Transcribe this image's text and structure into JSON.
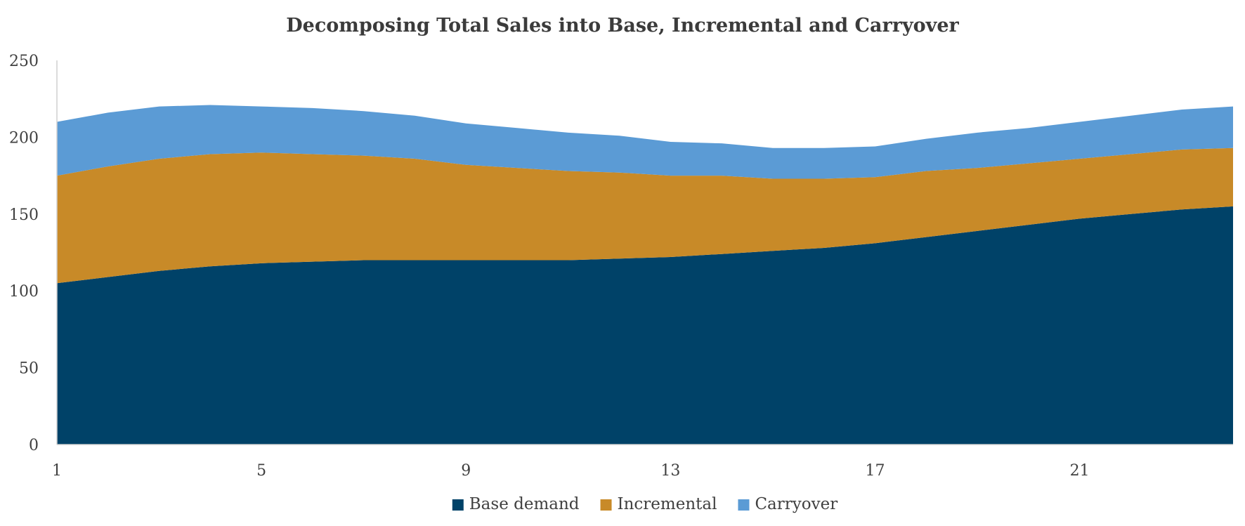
{
  "chart_data": {
    "type": "area",
    "stacked": true,
    "title": "Decomposing Total Sales into Base, Incremental and Carryover",
    "xlabel": "",
    "ylabel": "",
    "x": [
      1,
      2,
      3,
      4,
      5,
      6,
      7,
      8,
      9,
      10,
      11,
      12,
      13,
      14,
      15,
      16,
      17,
      18,
      19,
      20,
      21,
      22,
      23,
      24
    ],
    "x_tick_labels": [
      "1",
      "5",
      "9",
      "13",
      "17",
      "21"
    ],
    "x_ticks": [
      1,
      5,
      9,
      13,
      17,
      21
    ],
    "xlim": [
      1,
      24
    ],
    "ylim": [
      0,
      250
    ],
    "y_ticks": [
      0,
      50,
      100,
      150,
      200,
      250
    ],
    "y_tick_labels": [
      "0",
      "50",
      "100",
      "150",
      "200",
      "250"
    ],
    "grid": false,
    "legend_position": "bottom",
    "series": [
      {
        "name": "Base demand",
        "color": "#004268",
        "values": [
          105,
          109,
          113,
          116,
          118,
          119,
          120,
          120,
          120,
          120,
          120,
          121,
          122,
          124,
          126,
          128,
          131,
          135,
          139,
          143,
          147,
          150,
          153,
          155
        ]
      },
      {
        "name": "Incremental",
        "color": "#c88a28",
        "values": [
          70,
          72,
          73,
          73,
          72,
          70,
          68,
          66,
          62,
          60,
          58,
          56,
          53,
          51,
          47,
          45,
          43,
          43,
          41,
          40,
          39,
          39,
          39,
          38
        ]
      },
      {
        "name": "Carryover",
        "color": "#5b9bd5",
        "values": [
          35,
          35,
          34,
          32,
          30,
          30,
          29,
          28,
          27,
          26,
          25,
          24,
          22,
          21,
          20,
          20,
          20,
          21,
          23,
          23,
          24,
          25,
          26,
          27
        ]
      }
    ]
  }
}
